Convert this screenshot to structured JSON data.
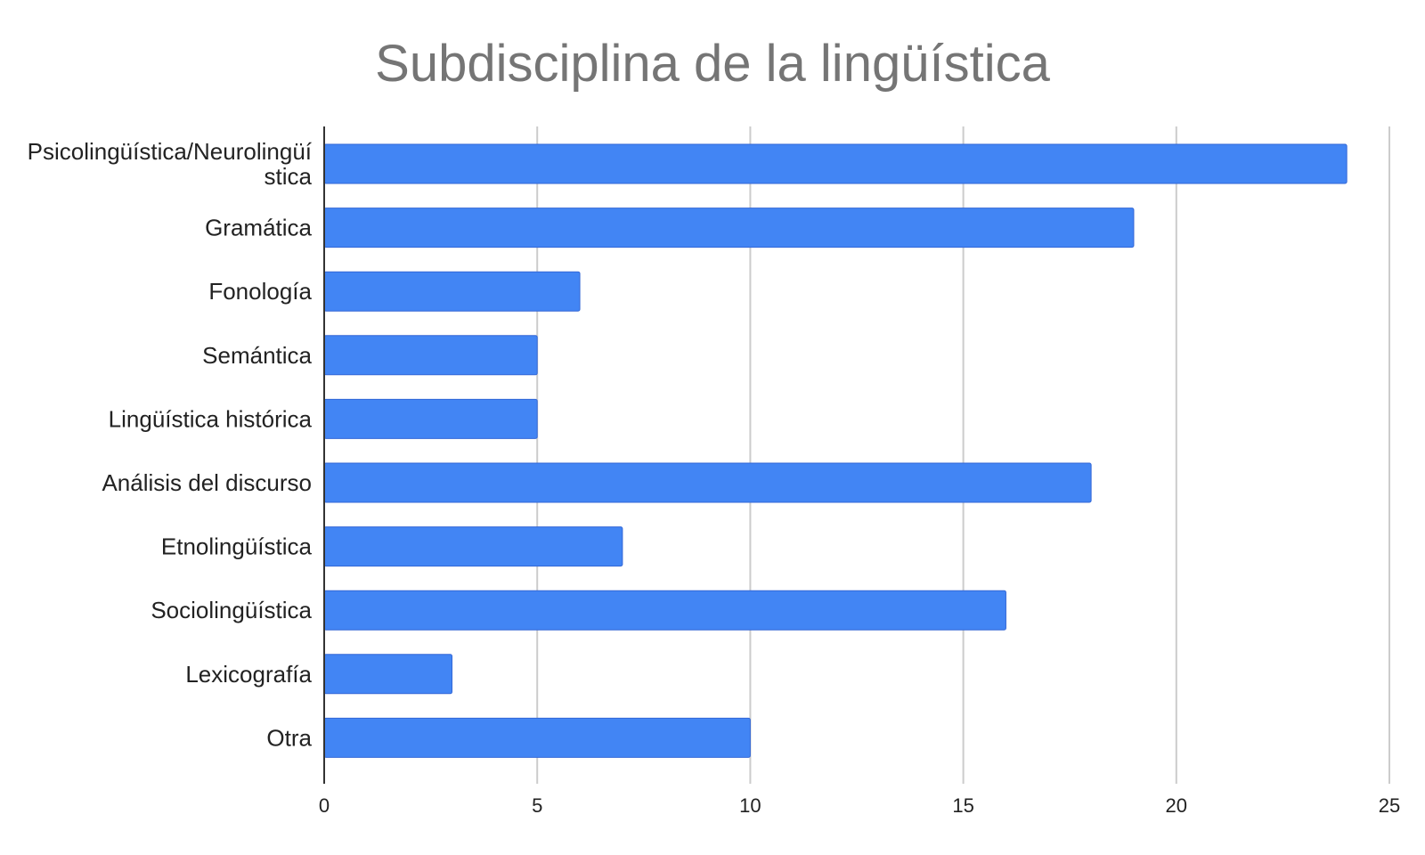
{
  "chart_data": {
    "type": "bar",
    "orientation": "horizontal",
    "title": "Subdisciplina de la lingüística",
    "xlabel": "",
    "ylabel": "",
    "categories": [
      "Psicolingüística/Neurolingüística",
      "Gramática",
      "Fonología",
      "Semántica",
      "Lingüística histórica",
      "Análisis del discurso",
      "Etnolingüística",
      "Sociolingüística",
      "Lexicografía",
      "Otra"
    ],
    "values": [
      24,
      19,
      6,
      5,
      5,
      18,
      7,
      16,
      3,
      10
    ],
    "xlim": [
      0,
      25
    ],
    "xticks": [
      "0",
      "5",
      "10",
      "15",
      "20",
      "25"
    ],
    "grid": true,
    "legend": "none",
    "bar_color": "#4285F4",
    "grid_color": "#CCCCCC",
    "title_color": "#757575"
  }
}
